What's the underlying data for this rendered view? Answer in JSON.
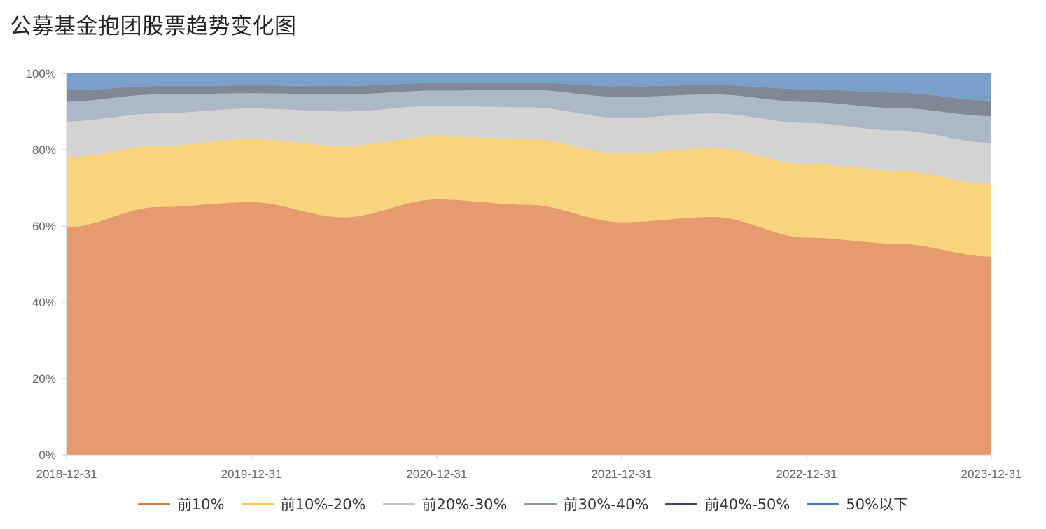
{
  "title": "公募基金抱团股票趋势变化图",
  "chart_data": {
    "type": "area",
    "stacked": true,
    "x": [
      "2018-12-31",
      "2019-06-30",
      "2019-12-31",
      "2020-06-30",
      "2020-12-31",
      "2021-06-30",
      "2021-12-31",
      "2022-06-30",
      "2022-12-31",
      "2023-06-30",
      "2023-12-31"
    ],
    "x_ticks": [
      "2018-12-31",
      "2019-12-31",
      "2020-12-31",
      "2021-12-31",
      "2022-12-31",
      "2023-12-31"
    ],
    "y_ticks": [
      "0%",
      "20%",
      "40%",
      "60%",
      "80%",
      "100%"
    ],
    "ylim": [
      0,
      100
    ],
    "series": [
      {
        "name": "前10%",
        "color": "#e59b6d",
        "line_color": "#e07b3d",
        "values": [
          59.7,
          65.0,
          66.3,
          62.3,
          67.0,
          65.6,
          61.0,
          62.4,
          57.0,
          55.4,
          52.0
        ]
      },
      {
        "name": "前10%-20%",
        "color": "#f7d47d",
        "line_color": "#f5c648",
        "values": [
          18.3,
          16.0,
          16.5,
          18.7,
          16.5,
          17.3,
          18.0,
          18.0,
          19.3,
          19.1,
          19.0
        ]
      },
      {
        "name": "前20%-30%",
        "color": "#d3d3d3",
        "line_color": "#c4c4c4",
        "values": [
          9.4,
          8.5,
          8.0,
          9.0,
          8.0,
          8.2,
          9.3,
          9.1,
          10.7,
          10.5,
          10.8
        ]
      },
      {
        "name": "前30%-40%",
        "color": "#adb8c6",
        "line_color": "#8a9ab4",
        "values": [
          5.2,
          5.0,
          4.0,
          4.5,
          4.0,
          4.6,
          5.5,
          5.0,
          5.5,
          5.9,
          7.0
        ]
      },
      {
        "name": "前40%-50%",
        "color": "#7f8897",
        "line_color": "#3d4a66",
        "values": [
          3.0,
          2.2,
          2.0,
          2.2,
          2.0,
          1.9,
          2.8,
          2.5,
          3.4,
          4.1,
          4.1
        ]
      },
      {
        "name": "50%以下",
        "color": "#7a9fcb",
        "line_color": "#4a78b5",
        "values": [
          4.4,
          3.3,
          3.2,
          3.3,
          2.5,
          2.4,
          3.4,
          3.0,
          4.1,
          5.0,
          7.1
        ]
      }
    ]
  }
}
